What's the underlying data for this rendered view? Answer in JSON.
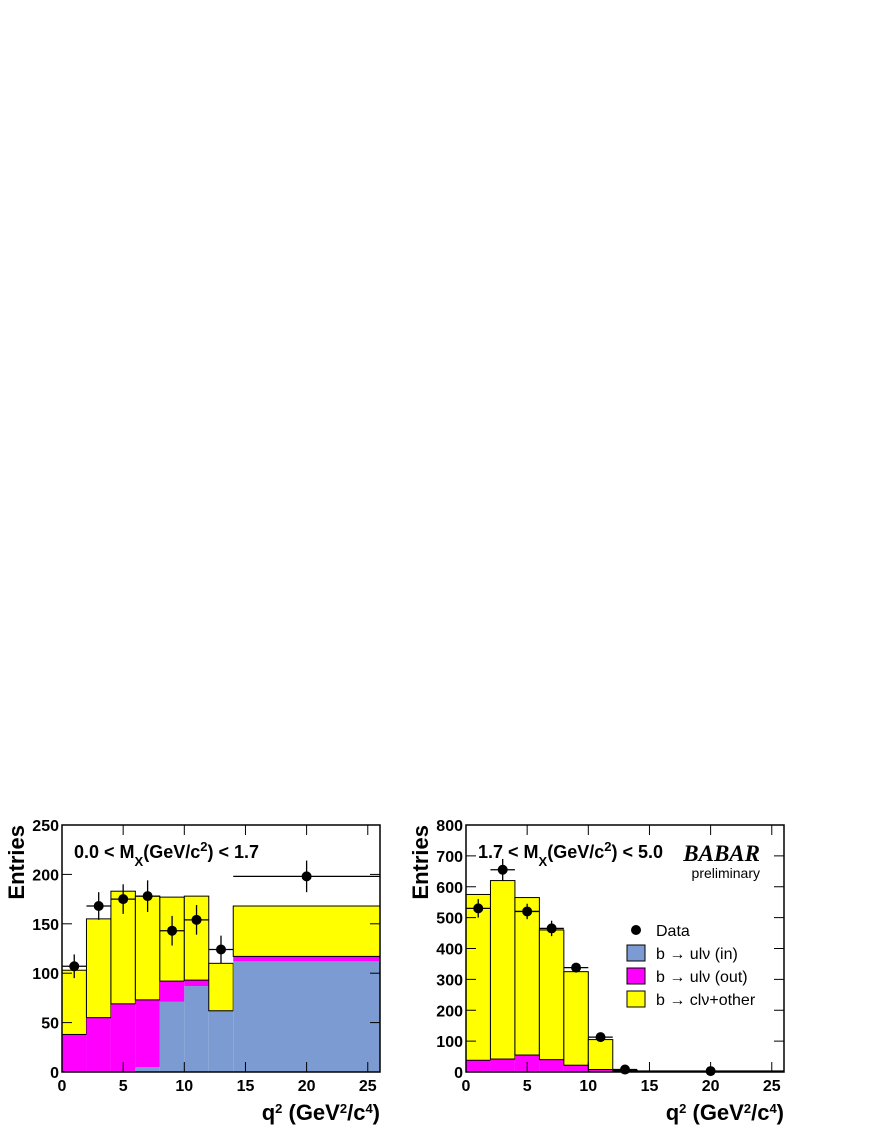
{
  "chart_data": [
    {
      "type": "histogram",
      "annotation": [
        "0.0 < M",
        "X",
        "(GeV/c",
        "2",
        ") < 1.7"
      ],
      "x_label": [
        "q",
        "2",
        " (GeV",
        "2",
        "/c",
        "4",
        ")"
      ],
      "y_label": "Entries",
      "bins": [
        0,
        2,
        4,
        6,
        8,
        10,
        12,
        14,
        26
      ],
      "series": [
        {
          "color": "#7b9bd2",
          "values": [
            0,
            0,
            0,
            5,
            71,
            87,
            61,
            112
          ]
        },
        {
          "color": "#ff00ff",
          "values": [
            38,
            55,
            69,
            68,
            21,
            6,
            1,
            5
          ]
        },
        {
          "color": "#ffff00",
          "values": [
            65,
            100,
            114,
            105,
            85,
            85,
            48,
            51
          ]
        }
      ],
      "data": {
        "x": [
          1,
          3,
          5,
          7,
          9,
          11,
          13,
          20
        ],
        "xerr": [
          1,
          1,
          1,
          1,
          1,
          1,
          1,
          6
        ],
        "values": [
          107,
          168,
          175,
          178,
          143,
          154,
          124,
          198
        ],
        "errors": [
          12,
          14,
          15,
          16,
          15,
          15,
          14,
          16
        ]
      },
      "xlim": [
        0,
        26
      ],
      "xticks": [
        0,
        5,
        10,
        15,
        20,
        25
      ],
      "ylim": [
        0,
        250
      ],
      "yticks": [
        0,
        50,
        100,
        150,
        200,
        250
      ]
    },
    {
      "type": "histogram",
      "annotation": [
        "1.7 < M",
        "X",
        "(GeV/c",
        "2",
        ") < 5.0"
      ],
      "logo": "BABAR",
      "logo_note": "preliminary",
      "x_label": [
        "q",
        "2",
        " (GeV",
        "2",
        "/c",
        "4",
        ")"
      ],
      "y_label": "Entries",
      "legend": "right",
      "bins": [
        0,
        2,
        4,
        6,
        8,
        10,
        12,
        14,
        26
      ],
      "series": [
        {
          "name": "b → ulν (in)",
          "color": "#7b9bd2",
          "values": [
            2,
            2,
            3,
            2,
            1,
            1,
            0,
            0
          ]
        },
        {
          "name": "b → ulν (out)",
          "color": "#ff00ff",
          "values": [
            36,
            40,
            52,
            38,
            21,
            7,
            2,
            1
          ]
        },
        {
          "name": "b → clν+other",
          "color": "#ffff00",
          "values": [
            537,
            578,
            510,
            420,
            303,
            97,
            3,
            1
          ]
        }
      ],
      "data": {
        "name": "Data",
        "x": [
          1,
          3,
          5,
          7,
          9,
          11,
          13,
          20
        ],
        "xerr": [
          1,
          1,
          1,
          1,
          1,
          1,
          1,
          6
        ],
        "values": [
          530,
          655,
          520,
          465,
          338,
          113,
          8,
          3
        ],
        "errors": [
          30,
          35,
          25,
          25,
          15,
          8,
          3,
          2
        ]
      },
      "xlim": [
        0,
        26
      ],
      "xticks": [
        0,
        5,
        10,
        15,
        20,
        25
      ],
      "ylim": [
        0,
        800
      ],
      "yticks": [
        0,
        100,
        200,
        300,
        400,
        500,
        600,
        700,
        800
      ]
    }
  ]
}
